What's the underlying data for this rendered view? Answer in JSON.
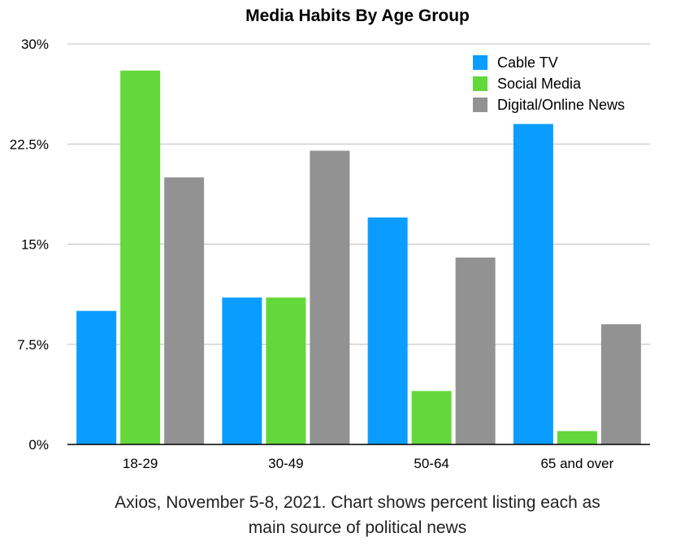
{
  "chart_data": {
    "type": "bar",
    "title": "Media Habits By Age Group",
    "caption_lines": [
      "Axios, November 5-8, 2021. Chart shows percent listing each as",
      "main source of political news"
    ],
    "categories": [
      "18-29",
      "30-49",
      "50-64",
      "65 and over"
    ],
    "series": [
      {
        "name": "Cable TV",
        "color": "#0a9dff",
        "values": [
          10,
          11,
          17,
          24
        ]
      },
      {
        "name": "Social Media",
        "color": "#62d83a",
        "values": [
          28,
          11,
          4,
          1
        ]
      },
      {
        "name": "Digital/Online News",
        "color": "#929292",
        "values": [
          20,
          22,
          14,
          9
        ]
      }
    ],
    "ylim": [
      0,
      30
    ],
    "y_ticks": [
      0,
      7.5,
      15,
      22.5,
      30
    ],
    "y_tick_labels": [
      "0%",
      "7.5%",
      "15%",
      "22.5%",
      "30%"
    ],
    "xlabel": "",
    "ylabel": "",
    "grid": true,
    "legend_position": "top-right"
  }
}
